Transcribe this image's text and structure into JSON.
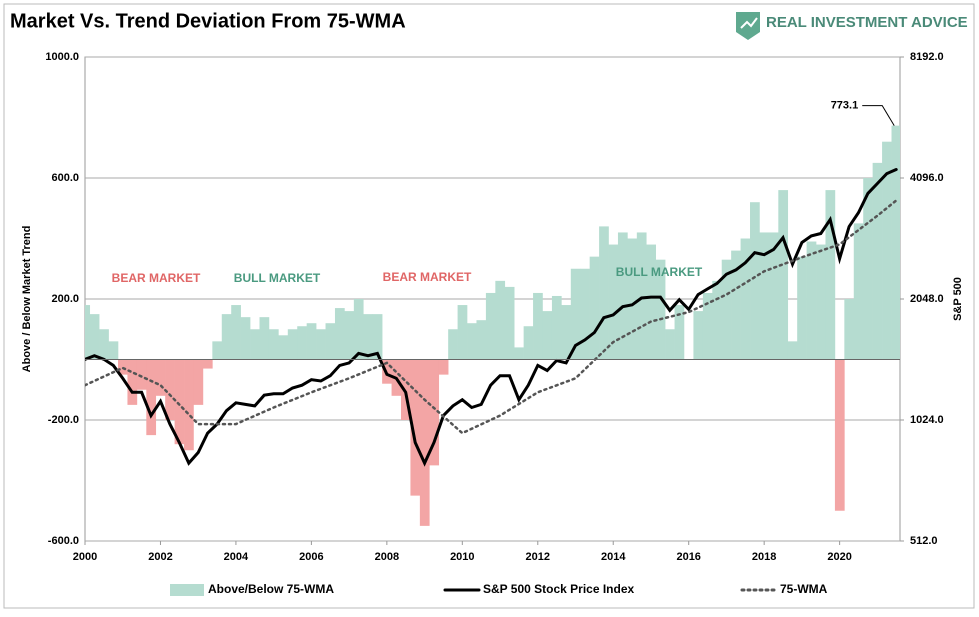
{
  "chart_data": {
    "type": "bar_line",
    "title": "Market Vs. Trend Deviation From 75-WMA",
    "brand": "REAL INVESTMENT ADVICE",
    "ylabel": "Above / Below Market Trend",
    "y2label": "S&P 500",
    "annotations": [
      "BEAR MARKET",
      "BULL MARKET",
      "BEAR MARKET",
      "BULL MARKET"
    ],
    "x": [
      2000,
      2000.25,
      2000.5,
      2000.75,
      2001,
      2001.25,
      2001.5,
      2001.75,
      2002,
      2002.25,
      2002.5,
      2002.75,
      2003,
      2003.25,
      2003.5,
      2003.75,
      2004,
      2004.25,
      2004.5,
      2004.75,
      2005,
      2005.25,
      2005.5,
      2005.75,
      2006,
      2006.25,
      2006.5,
      2006.75,
      2007,
      2007.25,
      2007.5,
      2007.75,
      2008,
      2008.25,
      2008.5,
      2008.75,
      2009,
      2009.25,
      2009.5,
      2009.75,
      2010,
      2010.25,
      2010.5,
      2010.75,
      2011,
      2011.25,
      2011.5,
      2011.75,
      2012,
      2012.25,
      2012.5,
      2012.75,
      2013,
      2013.25,
      2013.5,
      2013.75,
      2014,
      2014.25,
      2014.5,
      2014.75,
      2015,
      2015.25,
      2015.5,
      2015.75,
      2016,
      2016.25,
      2016.5,
      2016.75,
      2017,
      2017.25,
      2017.5,
      2017.75,
      2018,
      2018.25,
      2018.5,
      2018.75,
      2019,
      2019.25,
      2019.5,
      2019.75,
      2020,
      2020.25,
      2020.5,
      2020.75,
      2021,
      2021.25,
      2021.5
    ],
    "series": [
      {
        "name": "Above/Below 75-WMA",
        "color": "#b5dcd0",
        "negative_color": "#f3a5a5",
        "values": [
          180,
          150,
          100,
          60,
          -50,
          -150,
          -100,
          -250,
          -120,
          -200,
          -280,
          -300,
          -150,
          -30,
          60,
          150,
          180,
          140,
          100,
          140,
          100,
          80,
          100,
          110,
          120,
          100,
          120,
          170,
          160,
          200,
          150,
          150,
          -80,
          -120,
          -200,
          -450,
          -550,
          -350,
          -50,
          100,
          180,
          120,
          130,
          220,
          260,
          240,
          40,
          110,
          220,
          160,
          210,
          180,
          300,
          300,
          340,
          440,
          380,
          420,
          400,
          420,
          380,
          330,
          100,
          180,
          0,
          160,
          220,
          260,
          330,
          360,
          400,
          520,
          420,
          420,
          560,
          60,
          340,
          390,
          380,
          560,
          -500,
          200,
          450,
          600,
          650,
          720,
          773.1
        ]
      },
      {
        "name": "S&P 500 Stock Price Index",
        "color": "#000000",
        "axis": "y2",
        "values": [
          1450,
          1480,
          1450,
          1400,
          1300,
          1200,
          1200,
          1050,
          1140,
          1000,
          900,
          800,
          850,
          950,
          1000,
          1080,
          1130,
          1120,
          1110,
          1180,
          1190,
          1190,
          1230,
          1250,
          1290,
          1280,
          1320,
          1400,
          1420,
          1500,
          1480,
          1500,
          1330,
          1300,
          1200,
          900,
          800,
          900,
          1050,
          1110,
          1150,
          1100,
          1120,
          1250,
          1320,
          1320,
          1150,
          1250,
          1400,
          1360,
          1440,
          1420,
          1570,
          1620,
          1690,
          1840,
          1870,
          1960,
          1980,
          2060,
          2070,
          2070,
          1920,
          2040,
          1930,
          2100,
          2170,
          2240,
          2360,
          2420,
          2520,
          2670,
          2640,
          2720,
          2910,
          2500,
          2830,
          2940,
          2980,
          3230,
          2580,
          3100,
          3360,
          3750,
          3970,
          4200,
          4300
        ]
      },
      {
        "name": "75-WMA",
        "color": "#555555",
        "axis": "y2",
        "dash": true,
        "x": [
          2000,
          2001,
          2002,
          2003,
          2004,
          2005,
          2006,
          2007,
          2008,
          2009,
          2010,
          2011,
          2012,
          2013,
          2014,
          2015,
          2016,
          2017,
          2018,
          2019,
          2020,
          2021,
          2021.5
        ],
        "values": [
          1250,
          1380,
          1250,
          1000,
          1000,
          1100,
          1200,
          1300,
          1420,
          1150,
          950,
          1050,
          1200,
          1300,
          1600,
          1800,
          1900,
          2100,
          2400,
          2600,
          2800,
          3300,
          3600
        ]
      }
    ],
    "xlim": [
      2000,
      2021.6
    ],
    "xticks": [
      2000,
      2002,
      2004,
      2006,
      2008,
      2010,
      2012,
      2014,
      2016,
      2018,
      2020
    ],
    "ylim": [
      -600,
      1000
    ],
    "yticks": [
      {
        "value": -600,
        "label": "-600.0"
      },
      {
        "value": -200,
        "label": "-200.0"
      },
      {
        "value": 200,
        "label": "200.0"
      },
      {
        "value": 600,
        "label": "600.0"
      },
      {
        "value": 1000,
        "label": "1000.0"
      }
    ],
    "y2lim": [
      512,
      8192
    ],
    "y2ticks": [
      {
        "value": 512,
        "label": "512.0"
      },
      {
        "value": 1024,
        "label": "1024.0"
      },
      {
        "value": 2048,
        "label": "2048.0"
      },
      {
        "value": 4096,
        "label": "4096.0"
      },
      {
        "value": 8192,
        "label": "8192.0"
      }
    ],
    "y2log": true,
    "grid": true
  }
}
